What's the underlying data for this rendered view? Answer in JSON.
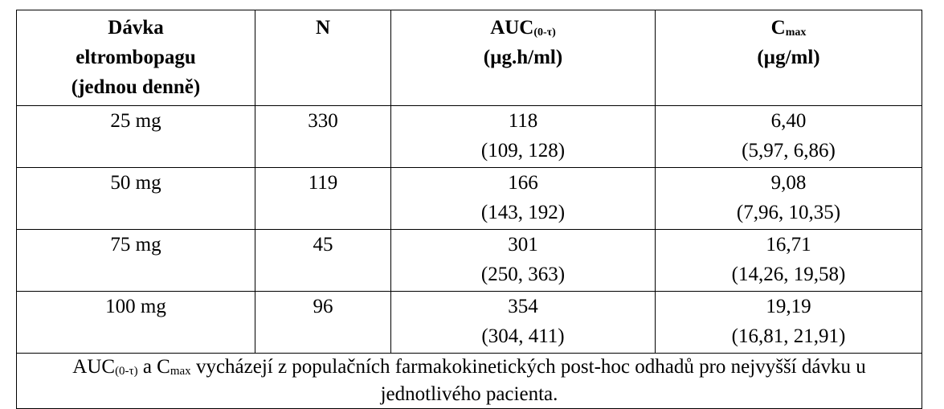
{
  "table": {
    "headers": {
      "dose_line1": "Dávka",
      "dose_line2": "eltrombopagu",
      "dose_line3": "(jednou denně)",
      "n": "N",
      "auc_main": "AUC",
      "auc_sub": "(0-τ)",
      "auc_unit": "(µg.h/ml)",
      "cmax_main": "C",
      "cmax_sub": "max",
      "cmax_unit": "(µg/ml)"
    },
    "rows": [
      {
        "dose": "25 mg",
        "n": "330",
        "auc": "118",
        "auc_ci": "(109, 128)",
        "cmax": "6,40",
        "cmax_ci": "(5,97, 6,86)"
      },
      {
        "dose": "50 mg",
        "n": "119",
        "auc": "166",
        "auc_ci": "(143, 192)",
        "cmax": "9,08",
        "cmax_ci": "(7,96, 10,35)"
      },
      {
        "dose": "75 mg",
        "n": "45",
        "auc": "301",
        "auc_ci": "(250, 363)",
        "cmax": "16,71",
        "cmax_ci": "(14,26, 19,58)"
      },
      {
        "dose": "100 mg",
        "n": "96",
        "auc": "354",
        "auc_ci": "(304, 411)",
        "cmax": "19,19",
        "cmax_ci": "(16,81, 21,91)"
      }
    ],
    "footnote": {
      "auc": "AUC",
      "auc_sub": "(0-τ)",
      "mid": " a C",
      "cmax_sub": "max",
      "text": " vycházejí z populačních farmakokinetických post-hoc odhadů pro nejvyšší dávku u jednotlivého pacienta."
    }
  }
}
